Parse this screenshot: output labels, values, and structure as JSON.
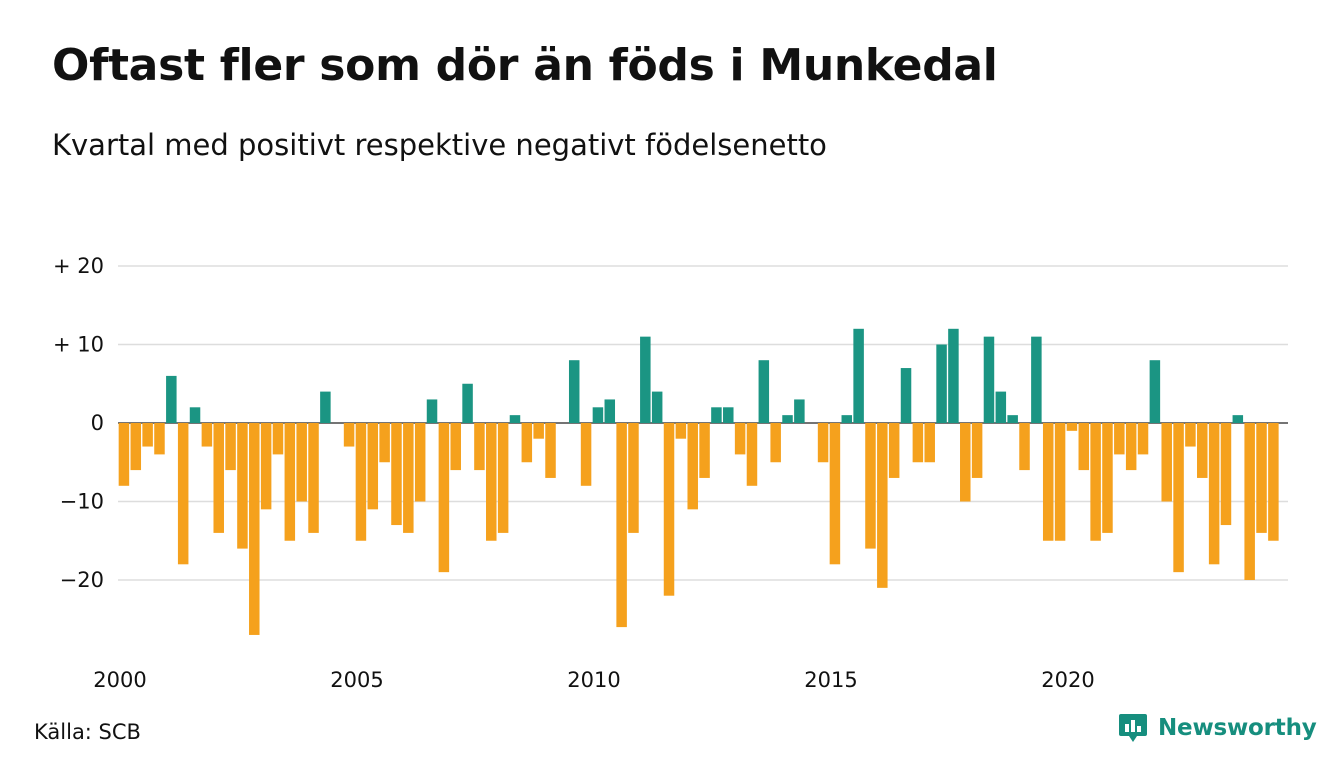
{
  "chart_data": {
    "type": "bar",
    "title": "Oftast fler som dör än föds i Munkedal",
    "subtitle": "Kvartal med positivt respektive negativt födelsenetto",
    "x_start_year": 2000,
    "x_tick_labels": [
      "2000",
      "2005",
      "2010",
      "2015",
      "2020"
    ],
    "y_ticks": [
      {
        "value": 20,
        "label": "+ 20"
      },
      {
        "value": 10,
        "label": "+ 10"
      },
      {
        "value": 0,
        "label": "0"
      },
      {
        "value": -10,
        "label": "−10"
      },
      {
        "value": -20,
        "label": "−20"
      }
    ],
    "ylim": [
      -28,
      20
    ],
    "grid": true,
    "positive_color": "#1b9583",
    "negative_color": "#f5a11d",
    "values": [
      -8,
      -6,
      -3,
      -4,
      6,
      -18,
      2,
      -3,
      -14,
      -6,
      -16,
      -27,
      -11,
      -4,
      -15,
      -10,
      -14,
      4,
      0,
      -3,
      -15,
      -11,
      -5,
      -13,
      -14,
      -10,
      3,
      -19,
      -6,
      5,
      -6,
      -15,
      -14,
      1,
      -5,
      -2,
      -7,
      0,
      8,
      -8,
      2,
      3,
      -26,
      -14,
      11,
      4,
      -22,
      -2,
      -11,
      -7,
      2,
      2,
      -4,
      -8,
      8,
      -5,
      1,
      3,
      0,
      -5,
      -18,
      1,
      12,
      -16,
      -21,
      -7,
      7,
      -5,
      -5,
      10,
      12,
      -10,
      -7,
      11,
      4,
      1,
      -6,
      11,
      -15,
      -15,
      -1,
      -6,
      -15,
      -14,
      -4,
      -6,
      -4,
      8,
      -10,
      -19,
      -3,
      -7,
      -18,
      -13,
      1,
      -20,
      -14,
      -15
    ]
  },
  "footer": {
    "source": "Källa: SCB",
    "brand": "Newsworthy",
    "brand_color": "#168e7e",
    "brand_icon": "newsworthy-logo-icon"
  }
}
